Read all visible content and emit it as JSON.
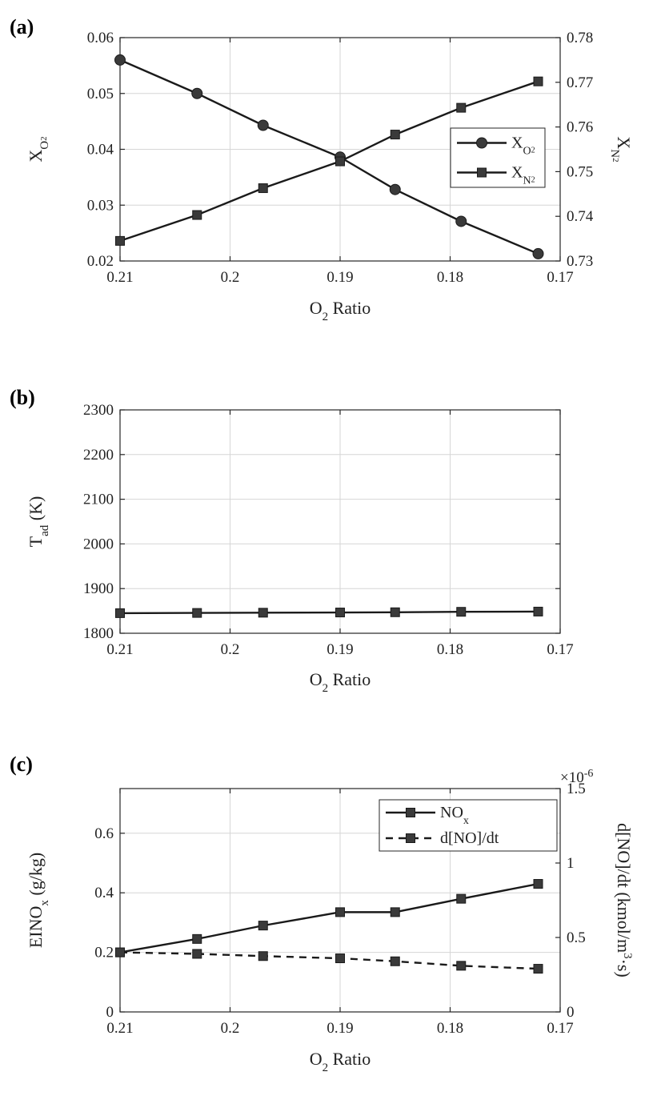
{
  "chart_data": [
    {
      "type": "line",
      "panel_label": "(a)",
      "x": [
        0.21,
        0.2,
        0.19,
        0.18,
        0.17
      ],
      "xlim": [
        0.21,
        0.17
      ],
      "xlabel": {
        "main": "O",
        "sub": "2",
        "rest": " Ratio"
      },
      "xticks": [
        "0.21",
        "0.2",
        "0.19",
        "0.18",
        "0.17"
      ],
      "left_axis": {
        "label": {
          "main": "X",
          "sub": "O",
          "subsub": "2"
        },
        "ylim": [
          0.02,
          0.06
        ],
        "ticks": [
          "0.02",
          "0.03",
          "0.04",
          "0.05",
          "0.06"
        ]
      },
      "right_axis": {
        "label": {
          "main": "X",
          "sub": "N",
          "subsub": "2"
        },
        "ylim": [
          0.73,
          0.78
        ],
        "ticks": [
          "0.73",
          "0.74",
          "0.75",
          "0.76",
          "0.77",
          "0.78"
        ]
      },
      "series": [
        {
          "name": "X_O2",
          "legend": {
            "main": "X",
            "sub": "O",
            "subsub": "2"
          },
          "axis": "left",
          "marker": "circle",
          "dash": false,
          "x": [
            0.21,
            0.203,
            0.197,
            0.19,
            0.185,
            0.179,
            0.172
          ],
          "values": [
            0.056,
            0.05,
            0.0443,
            0.0386,
            0.0328,
            0.0271,
            0.0213
          ]
        },
        {
          "name": "X_N2",
          "legend": {
            "main": "X",
            "sub": "N",
            "subsub": "2"
          },
          "axis": "right",
          "marker": "square",
          "dash": false,
          "x": [
            0.21,
            0.203,
            0.197,
            0.19,
            0.185,
            0.179,
            0.172
          ],
          "values": [
            0.7345,
            0.7403,
            0.7463,
            0.7523,
            0.7583,
            0.7643,
            0.7702
          ]
        }
      ],
      "legend_position": "right"
    },
    {
      "type": "line",
      "panel_label": "(b)",
      "xlim": [
        0.21,
        0.17
      ],
      "xlabel": {
        "main": "O",
        "sub": "2",
        "rest": " Ratio"
      },
      "xticks": [
        "0.21",
        "0.2",
        "0.19",
        "0.18",
        "0.17"
      ],
      "left_axis": {
        "label": {
          "main": "T",
          "sub": "ad",
          "rest": " (K)"
        },
        "ylim": [
          1800,
          2300
        ],
        "ticks": [
          "1800",
          "1900",
          "2000",
          "2100",
          "2200",
          "2300"
        ]
      },
      "series": [
        {
          "name": "T_ad",
          "axis": "left",
          "marker": "square",
          "dash": false,
          "x": [
            0.21,
            0.203,
            0.197,
            0.19,
            0.185,
            0.179,
            0.172
          ],
          "values": [
            1845,
            1845.5,
            1846,
            1846.5,
            1847,
            1848,
            1848.5
          ]
        }
      ]
    },
    {
      "type": "line",
      "panel_label": "(c)",
      "xlim": [
        0.21,
        0.17
      ],
      "xlabel": {
        "main": "O",
        "sub": "2",
        "rest": " Ratio"
      },
      "xticks": [
        "0.21",
        "0.2",
        "0.19",
        "0.18",
        "0.17"
      ],
      "left_axis": {
        "label": {
          "main": "EINO",
          "sub": "x",
          "rest": " (g/kg)"
        },
        "ylim": [
          0,
          0.75
        ],
        "tick_values": [
          0,
          0.2,
          0.4,
          0.6
        ],
        "ticks": [
          "0",
          "0.2",
          "0.4",
          "0.6"
        ]
      },
      "right_axis": {
        "label": {
          "main": "d[NO]/dt (kmol/m",
          "sup": "3",
          "rest": "·s)"
        },
        "ylim": [
          0,
          1.5
        ],
        "tick_values": [
          0,
          0.5,
          1,
          1.5
        ],
        "ticks": [
          "0",
          "0.5",
          "1",
          "1.5"
        ],
        "multiplier": {
          "base": "×10",
          "exp": "-6"
        }
      },
      "series": [
        {
          "name": "NO_x",
          "legend": {
            "main": "NO",
            "sub": "x"
          },
          "axis": "left",
          "marker": "square",
          "dash": false,
          "x": [
            0.21,
            0.203,
            0.197,
            0.19,
            0.185,
            0.179,
            0.172
          ],
          "values": [
            0.2,
            0.245,
            0.29,
            0.335,
            0.335,
            0.38,
            0.43
          ]
        },
        {
          "name": "d[NO]/dt",
          "legend": {
            "main": "d[NO]/dt"
          },
          "axis": "right",
          "marker": "square",
          "dash": true,
          "x": [
            0.21,
            0.203,
            0.197,
            0.19,
            0.185,
            0.179,
            0.172
          ],
          "values": [
            0.4,
            0.39,
            0.375,
            0.36,
            0.34,
            0.31,
            0.29
          ]
        }
      ],
      "legend_position": "top-right"
    }
  ]
}
